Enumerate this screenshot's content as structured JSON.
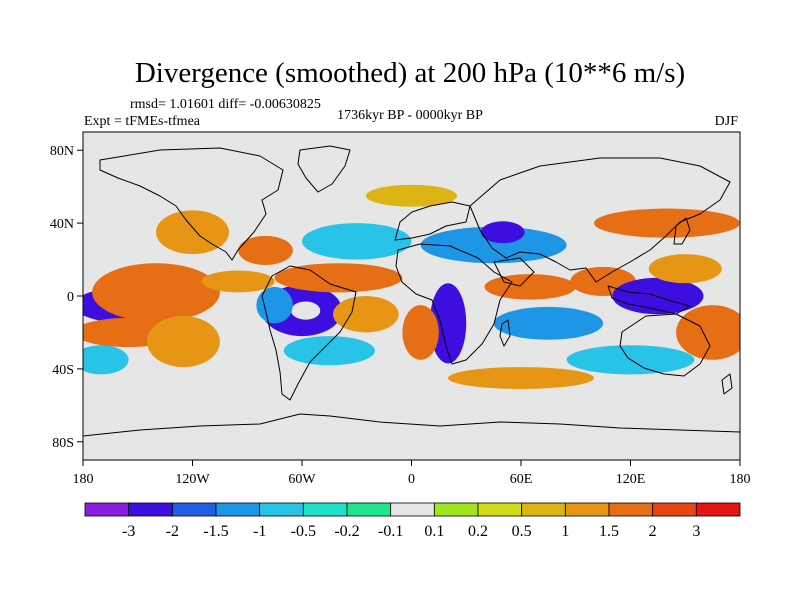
{
  "chart_data": {
    "type": "heatmap",
    "title": "Divergence (smoothed) at 200 hPa (10**6 m/s)",
    "stats_text": "rmsd= 1.01601 diff= -0.00630825",
    "experiment": "Expt = tFMEs-tfmea",
    "period": "1736kyr BP - 0000kyr BP",
    "season": "DJF",
    "x_range": [
      -180,
      180
    ],
    "y_range": [
      -90,
      90
    ],
    "x_ticks": [
      {
        "value": -180,
        "label": "180"
      },
      {
        "value": -120,
        "label": "120W"
      },
      {
        "value": -60,
        "label": "60W"
      },
      {
        "value": 0,
        "label": "0"
      },
      {
        "value": 60,
        "label": "60E"
      },
      {
        "value": 120,
        "label": "120E"
      },
      {
        "value": 180,
        "label": "180"
      }
    ],
    "y_ticks": [
      {
        "value": 80,
        "label": "80N"
      },
      {
        "value": 40,
        "label": "40N"
      },
      {
        "value": 0,
        "label": "0"
      },
      {
        "value": -40,
        "label": "40S"
      },
      {
        "value": -80,
        "label": "80S"
      }
    ],
    "colorbar": {
      "colors": [
        "#8a1ee0",
        "#3c0fe0",
        "#1e5fe6",
        "#1e96e6",
        "#28c3e6",
        "#1ee1c8",
        "#1ee68c",
        "#e6e6e6",
        "#a0e61e",
        "#d2dc14",
        "#dcb414",
        "#e69614",
        "#e66e14",
        "#e64614",
        "#e61414"
      ],
      "labels": [
        "-3",
        "-2",
        "-1.5",
        "-1",
        "-0.5",
        "-0.2",
        "-0.1",
        "0.1",
        "0.2",
        "0.5",
        "1",
        "1.5",
        "2",
        "3"
      ]
    },
    "anomalies": [
      {
        "lon": -155,
        "lat": -5,
        "rx": 30,
        "ry": 10,
        "level": 1
      },
      {
        "lon": -140,
        "lat": 2,
        "rx": 35,
        "ry": 16,
        "level": 12
      },
      {
        "lon": -155,
        "lat": -20,
        "rx": 30,
        "ry": 8,
        "level": 12
      },
      {
        "lon": -125,
        "lat": -25,
        "rx": 20,
        "ry": 14,
        "level": 11
      },
      {
        "lon": -170,
        "lat": -35,
        "rx": 15,
        "ry": 8,
        "level": 4
      },
      {
        "lon": -60,
        "lat": -8,
        "rx": 22,
        "ry": 14,
        "level": 1
      },
      {
        "lon": -58,
        "lat": -8,
        "rx": 8,
        "ry": 5,
        "level": 7
      },
      {
        "lon": -75,
        "lat": -5,
        "rx": 10,
        "ry": 10,
        "level": 3
      },
      {
        "lon": -95,
        "lat": 8,
        "rx": 20,
        "ry": 6,
        "level": 11
      },
      {
        "lon": -40,
        "lat": 10,
        "rx": 35,
        "ry": 8,
        "level": 12
      },
      {
        "lon": -25,
        "lat": -10,
        "rx": 18,
        "ry": 10,
        "level": 11
      },
      {
        "lon": -45,
        "lat": -30,
        "rx": 25,
        "ry": 8,
        "level": 4
      },
      {
        "lon": -80,
        "lat": 25,
        "rx": 15,
        "ry": 8,
        "level": 12
      },
      {
        "lon": -30,
        "lat": 30,
        "rx": 30,
        "ry": 10,
        "level": 4
      },
      {
        "lon": 20,
        "lat": -15,
        "rx": 10,
        "ry": 22,
        "level": 1
      },
      {
        "lon": 5,
        "lat": -20,
        "rx": 10,
        "ry": 15,
        "level": 12
      },
      {
        "lon": 45,
        "lat": 28,
        "rx": 40,
        "ry": 10,
        "level": 3
      },
      {
        "lon": 50,
        "lat": 35,
        "rx": 12,
        "ry": 6,
        "level": 1
      },
      {
        "lon": 65,
        "lat": 5,
        "rx": 25,
        "ry": 7,
        "level": 12
      },
      {
        "lon": 105,
        "lat": 8,
        "rx": 18,
        "ry": 8,
        "level": 12
      },
      {
        "lon": 75,
        "lat": -15,
        "rx": 30,
        "ry": 9,
        "level": 3
      },
      {
        "lon": 135,
        "lat": 0,
        "rx": 25,
        "ry": 10,
        "level": 1
      },
      {
        "lon": 150,
        "lat": 15,
        "rx": 20,
        "ry": 8,
        "level": 11
      },
      {
        "lon": 140,
        "lat": 40,
        "rx": 40,
        "ry": 8,
        "level": 12
      },
      {
        "lon": 165,
        "lat": -20,
        "rx": 20,
        "ry": 15,
        "level": 12
      },
      {
        "lon": 120,
        "lat": -35,
        "rx": 35,
        "ry": 8,
        "level": 4
      },
      {
        "lon": 60,
        "lat": -45,
        "rx": 40,
        "ry": 6,
        "level": 11
      },
      {
        "lon": -120,
        "lat": 35,
        "rx": 20,
        "ry": 12,
        "level": 11
      },
      {
        "lon": 0,
        "lat": 55,
        "rx": 25,
        "ry": 6,
        "level": 10
      }
    ]
  }
}
